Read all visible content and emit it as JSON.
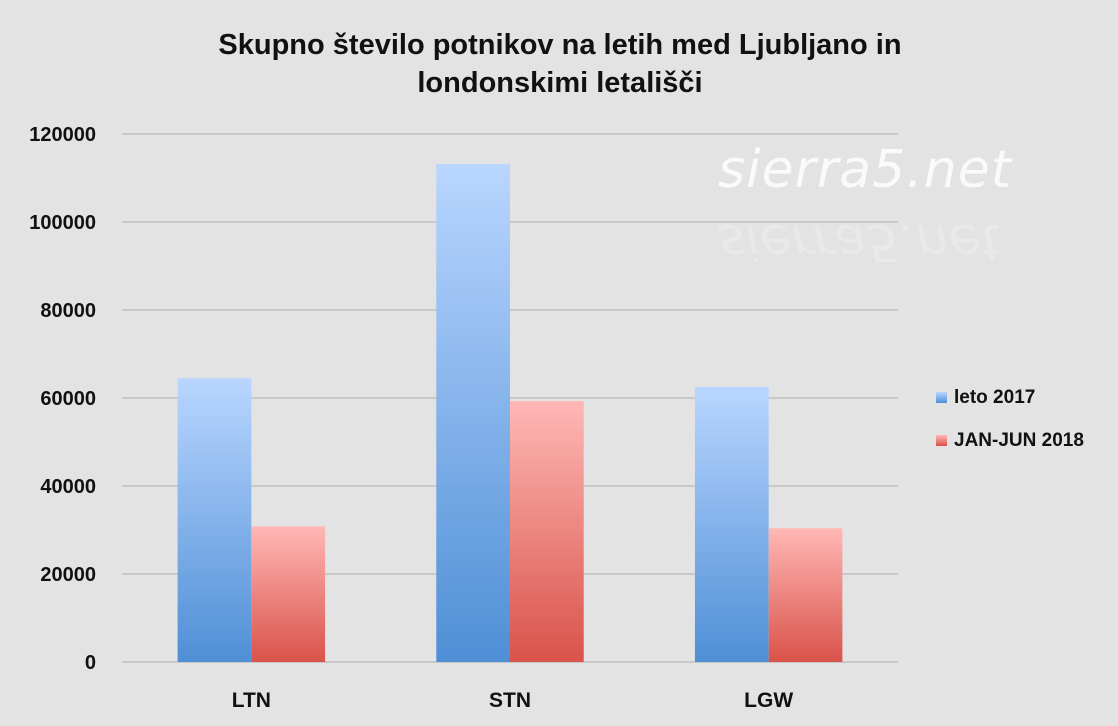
{
  "title": {
    "line1": "Skupno število potnikov na letih med Ljubljano in",
    "line2": "londonskimi letališči"
  },
  "watermark": "sierra5.net",
  "chart_data": {
    "type": "bar",
    "title": "Skupno število potnikov na letih med Ljubljano in londonskimi letališči",
    "categories": [
      "LTN",
      "STN",
      "LGW"
    ],
    "series": [
      {
        "name": "leto 2017",
        "values": [
          64500,
          113200,
          62500
        ],
        "color_top": "#b9d6ff",
        "color_bottom": "#4f8fd6"
      },
      {
        "name": "JAN-JUN 2018",
        "values": [
          30800,
          59300,
          30400
        ],
        "color_top": "#ffb8b6",
        "color_bottom": "#d9534a"
      }
    ],
    "yticks": [
      "0",
      "20000",
      "40000",
      "60000",
      "80000",
      "100000",
      "120000"
    ],
    "ylim": [
      0,
      120000
    ],
    "grid": true,
    "legend": "right"
  }
}
